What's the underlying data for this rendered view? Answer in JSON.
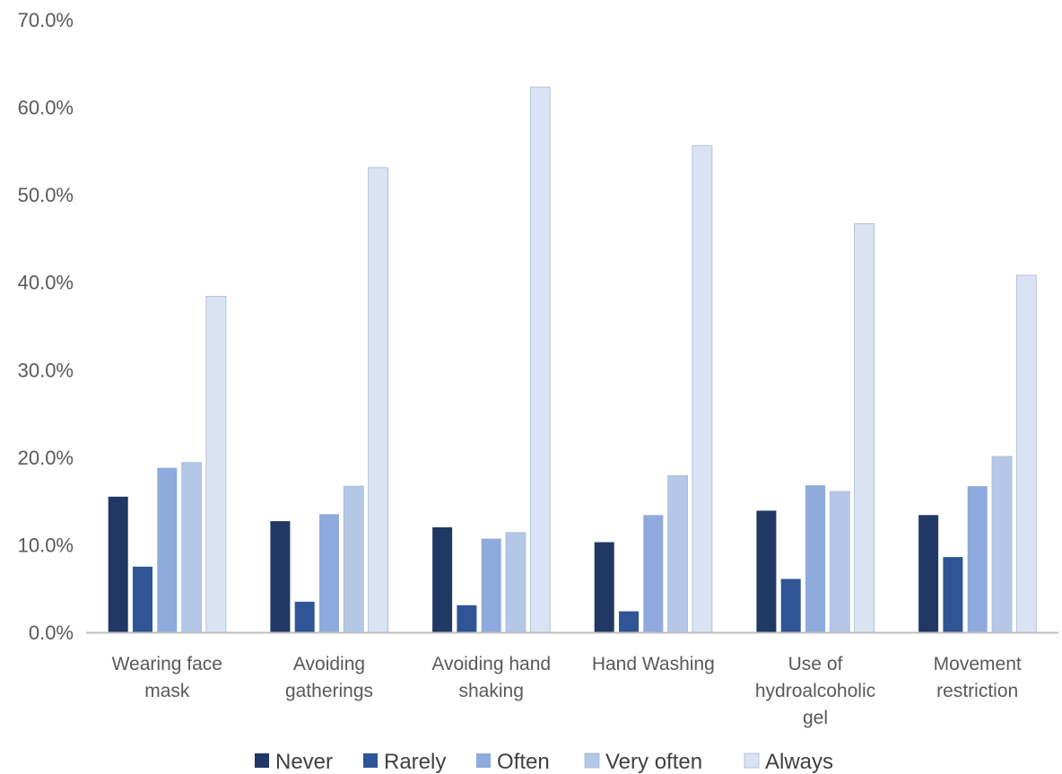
{
  "chart_data": {
    "type": "bar",
    "title": "",
    "xlabel": "",
    "ylabel": "",
    "ylim": [
      0,
      70
    ],
    "y_ticks": [
      "0.0%",
      "10.0%",
      "20.0%",
      "30.0%",
      "40.0%",
      "50.0%",
      "60.0%",
      "70.0%"
    ],
    "y_tick_values": [
      0,
      10,
      20,
      30,
      40,
      50,
      60,
      70
    ],
    "grid": false,
    "legend_position": "bottom",
    "categories": [
      [
        "Wearing face",
        "mask"
      ],
      [
        "Avoiding",
        "gatherings"
      ],
      [
        "Avoiding hand",
        "shaking"
      ],
      [
        "Hand Washing"
      ],
      [
        "Use of",
        "hydroalcoholic",
        "gel"
      ],
      [
        "Movement",
        "restriction"
      ]
    ],
    "series": [
      {
        "name": "Never",
        "color": "#203864",
        "values": [
          15.5,
          12.7,
          12.0,
          10.3,
          13.9,
          13.4
        ]
      },
      {
        "name": "Rarely",
        "color": "#2F5597",
        "values": [
          7.5,
          3.5,
          3.1,
          2.4,
          6.1,
          8.6
        ]
      },
      {
        "name": "Often",
        "color": "#8FAADC",
        "values": [
          18.8,
          13.5,
          10.7,
          13.4,
          16.8,
          16.7
        ]
      },
      {
        "name": "Very often",
        "color": "#B4C7E7",
        "values": [
          19.4,
          16.7,
          11.4,
          17.9,
          16.1,
          20.1
        ]
      },
      {
        "name": "Always",
        "color": "#DAE3F3",
        "values": [
          38.4,
          53.1,
          62.3,
          55.6,
          46.7,
          40.8
        ]
      }
    ]
  }
}
